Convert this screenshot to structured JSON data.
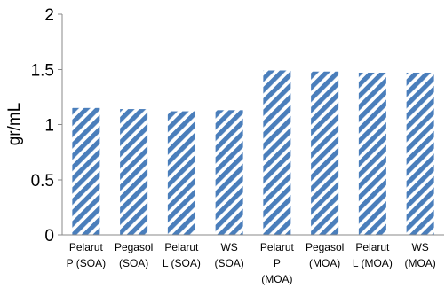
{
  "chart_data": {
    "type": "bar",
    "title": "",
    "xlabel": "",
    "ylabel": "gr/mL",
    "ylim": [
      0,
      2
    ],
    "yticks": [
      0,
      0.5,
      1,
      1.5,
      2
    ],
    "ytick_labels": [
      "0",
      "0.5",
      "1",
      "1.5",
      "2"
    ],
    "grid": false,
    "legend": "none",
    "categories": [
      "Pelarut P (SOA)",
      "Pegasol (SOA)",
      "Pelarut L (SOA)",
      "WS (SOA)",
      "Pelarut P (MOA)",
      "Pegasol (MOA)",
      "Pelarut L (MOA)",
      "WS (MOA)"
    ],
    "category_lines": [
      [
        "Pelarut",
        "P (SOA)"
      ],
      [
        "Pegasol",
        "(SOA)"
      ],
      [
        "Pelarut",
        "L (SOA)"
      ],
      [
        "WS",
        "(SOA)"
      ],
      [
        "Pelarut",
        "P",
        "(MOA)"
      ],
      [
        "Pegasol",
        "(MOA)"
      ],
      [
        "Pelarut",
        "L (MOA)"
      ],
      [
        "WS",
        "(MOA)"
      ]
    ],
    "values": [
      1.15,
      1.14,
      1.12,
      1.13,
      1.49,
      1.48,
      1.47,
      1.47
    ],
    "bar_color": "#4a7ebb",
    "bar_pattern": "diagonal-stripes"
  }
}
